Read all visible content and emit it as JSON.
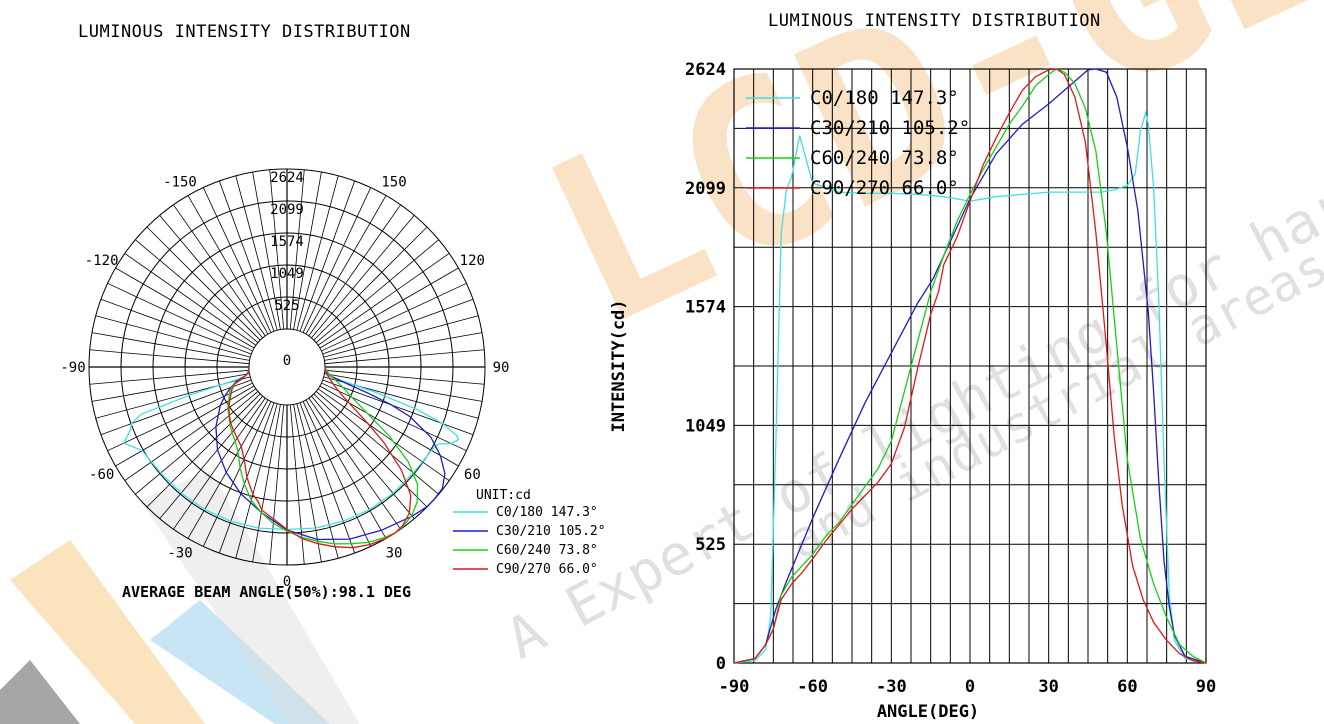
{
  "watermark": {
    "brand": "LCD-GES",
    "tagline_1": "A Expert of lighting for harsh,h",
    "tagline_2": "and industrial areas",
    "colors": {
      "orange": "#f7c68e",
      "grey": "#9e9e9e",
      "blue": "#a9d5ee",
      "dark": "#555555"
    }
  },
  "chart_data": [
    {
      "type": "polar",
      "title": "LUMINOUS INTENSITY DISTRIBUTION",
      "unit_label": "UNIT:cd",
      "footer": "AVERAGE BEAM ANGLE(50%):98.1 DEG",
      "radial_ticks": [
        0,
        525,
        1049,
        1574,
        2099,
        2624
      ],
      "rmax": 2624,
      "angle_labels": [
        {
          "angle": 180,
          "text": "2624"
        },
        {
          "angle": -150,
          "text": "-150"
        },
        {
          "angle": 150,
          "text": "150"
        },
        {
          "angle": -120,
          "text": "-120"
        },
        {
          "angle": 120,
          "text": "120"
        },
        {
          "angle": -90,
          "text": "-90"
        },
        {
          "angle": 90,
          "text": "90"
        },
        {
          "angle": -60,
          "text": "-60"
        },
        {
          "angle": 60,
          "text": "60"
        },
        {
          "angle": -30,
          "text": "-30"
        },
        {
          "angle": 30,
          "text": "30"
        },
        {
          "angle": 0,
          "text": "0"
        }
      ],
      "legend": [
        {
          "name": "C0/180 147.3°",
          "color": "#40e0e0"
        },
        {
          "name": "C30/210 105.2°",
          "color": "#1c1cc8"
        },
        {
          "name": "C60/240 73.8°",
          "color": "#18d018"
        },
        {
          "name": "C90/270 66.0°",
          "color": "#e01818"
        }
      ]
    },
    {
      "type": "line",
      "title": "LUMINOUS INTENSITY DISTRIBUTION",
      "xlabel": "ANGLE(DEG)",
      "ylabel": "INTENSITY(cd)",
      "xlim": [
        -90,
        90
      ],
      "ylim": [
        0,
        2624
      ],
      "xticks": [
        -90,
        -60,
        -30,
        0,
        30,
        60,
        90
      ],
      "yticks": [
        0,
        525,
        1049,
        1574,
        2099,
        2624
      ],
      "grid": true,
      "legend_position": "top-left",
      "series": [
        {
          "name": "C0/180 147.3°",
          "color": "#40e0e0",
          "x": [
            -90,
            -82,
            -78,
            -76,
            -74,
            -72,
            -70,
            -68,
            -65,
            -60,
            -50,
            -40,
            -30,
            -20,
            -10,
            0,
            10,
            20,
            30,
            40,
            50,
            55,
            60,
            63,
            65,
            67,
            68,
            70,
            72,
            74,
            76,
            78,
            82,
            90
          ],
          "y": [
            0,
            10,
            60,
            200,
            1000,
            1900,
            2090,
            2150,
            2330,
            2120,
            2080,
            2075,
            2075,
            2070,
            2060,
            2040,
            2060,
            2070,
            2080,
            2080,
            2080,
            2090,
            2110,
            2160,
            2350,
            2430,
            2380,
            2100,
            1600,
            900,
            300,
            100,
            20,
            0
          ]
        },
        {
          "name": "C30/210 105.2°",
          "color": "#1c1cc8",
          "x": [
            -90,
            -82,
            -78,
            -74,
            -70,
            -65,
            -60,
            -50,
            -40,
            -30,
            -20,
            -15,
            -14,
            -10,
            0,
            10,
            20,
            30,
            40,
            45,
            48,
            52,
            56,
            60,
            64,
            68,
            70,
            72,
            74,
            76,
            78,
            82,
            90
          ],
          "y": [
            0,
            20,
            80,
            240,
            360,
            500,
            640,
            900,
            1150,
            1370,
            1590,
            1680,
            1700,
            1800,
            2050,
            2250,
            2380,
            2470,
            2570,
            2620,
            2624,
            2610,
            2500,
            2280,
            2000,
            1550,
            1200,
            800,
            450,
            250,
            120,
            30,
            0
          ]
        },
        {
          "name": "C60/240 73.8°",
          "color": "#18d018",
          "x": [
            -90,
            -82,
            -78,
            -75,
            -72,
            -68,
            -64,
            -60,
            -55,
            -50,
            -45,
            -40,
            -35,
            -30,
            -25,
            -20,
            -15,
            -10,
            -5,
            0,
            5,
            10,
            15,
            20,
            25,
            30,
            33,
            36,
            40,
            44,
            48,
            52,
            56,
            60,
            65,
            70,
            75,
            80,
            85,
            90
          ],
          "y": [
            0,
            20,
            80,
            150,
            300,
            380,
            430,
            480,
            560,
            620,
            700,
            780,
            860,
            980,
            1200,
            1420,
            1640,
            1800,
            1950,
            2070,
            2180,
            2280,
            2380,
            2460,
            2550,
            2600,
            2624,
            2610,
            2560,
            2450,
            2260,
            1900,
            1400,
            900,
            550,
            350,
            200,
            80,
            30,
            0
          ]
        },
        {
          "name": "C90/270 66.0°",
          "color": "#e01818",
          "x": [
            -90,
            -82,
            -78,
            -75,
            -72,
            -68,
            -64,
            -60,
            -55,
            -50,
            -45,
            -40,
            -35,
            -30,
            -25,
            -20,
            -15,
            -12,
            -10,
            -5,
            0,
            5,
            10,
            15,
            20,
            25,
            30,
            33,
            36,
            40,
            44,
            48,
            52,
            55,
            58,
            62,
            66,
            70,
            75,
            80,
            85,
            90
          ],
          "y": [
            0,
            20,
            80,
            150,
            280,
            350,
            400,
            460,
            540,
            610,
            680,
            740,
            800,
            880,
            1040,
            1300,
            1540,
            1640,
            1760,
            1880,
            2040,
            2200,
            2320,
            2430,
            2530,
            2590,
            2620,
            2624,
            2600,
            2500,
            2300,
            1900,
            1400,
            1000,
            700,
            430,
            280,
            180,
            100,
            40,
            10,
            0
          ]
        }
      ]
    }
  ]
}
